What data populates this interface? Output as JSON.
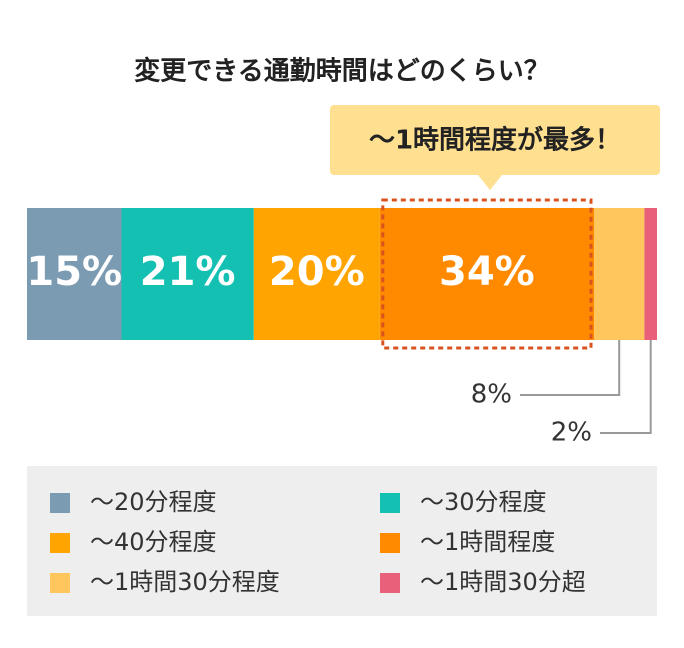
{
  "chart_data": {
    "type": "bar",
    "orientation": "horizontal",
    "stacked": true,
    "title": "変更できる通勤時間はどのくらい？",
    "annotation": "〜1時間程度が最多！",
    "series": [
      {
        "name": "〜20分程度",
        "color": "#7b9bb2",
        "values": [
          15
        ],
        "value_labels": [
          "15%"
        ]
      },
      {
        "name": "〜30分程度",
        "color": "#13c0b1",
        "values": [
          21
        ],
        "value_labels": [
          "21%"
        ]
      },
      {
        "name": "〜40分程度",
        "color": "#ffa400",
        "values": [
          20
        ],
        "value_labels": [
          "20%"
        ]
      },
      {
        "name": "〜1時間程度",
        "color": "#ff8a00",
        "values": [
          34
        ],
        "value_labels": [
          "34%"
        ]
      },
      {
        "name": "〜1時間30分程度",
        "color": "#ffc65e",
        "values": [
          8
        ],
        "value_labels": [
          "8%"
        ]
      },
      {
        "name": "〜1時間30分超",
        "color": "#e8607a",
        "values": [
          2
        ],
        "value_labels": [
          "2%"
        ]
      }
    ],
    "highlight": 3,
    "legend": "bottom"
  }
}
